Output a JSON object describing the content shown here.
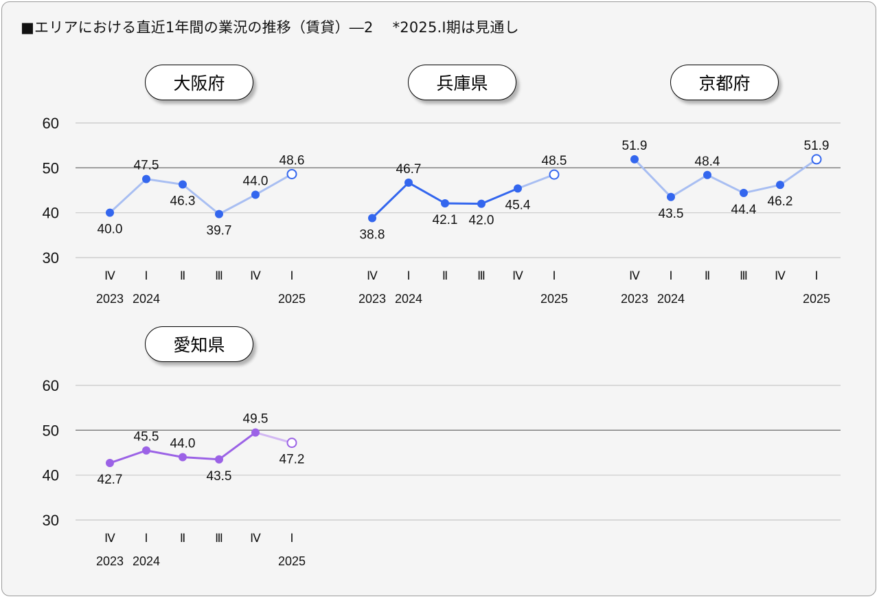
{
  "title": "■エリアにおける直近1年間の業況の推移（賃貸）―2",
  "title_note": "*2025.Ⅰ期は見通し",
  "colors": {
    "blue": "#3366ee",
    "blue_light": "#a8bef2",
    "purple": "#9b62e6",
    "purple_light": "#d2b8f3",
    "grid": "#c8c8c8",
    "grid_50": "#777777"
  },
  "chart_data": [
    {
      "type": "line",
      "name": "大阪府",
      "categories": [
        "Ⅳ",
        "Ⅰ",
        "Ⅱ",
        "Ⅲ",
        "Ⅳ",
        "Ⅰ"
      ],
      "years": [
        "2023",
        "2024",
        "",
        "",
        "",
        "2025"
      ],
      "values": [
        40.0,
        47.5,
        46.3,
        39.7,
        44.0,
        48.6
      ],
      "labels": [
        "40.0",
        "47.5",
        "46.3",
        "39.7",
        "44.0",
        "48.6"
      ],
      "label_pos": [
        "below",
        "above",
        "below",
        "below",
        "above",
        "above"
      ],
      "yticks": [
        "60",
        "50",
        "40",
        "30"
      ],
      "ylim": [
        30,
        60
      ],
      "forecast_last": true,
      "segment_tone": [
        "light",
        "light",
        "light",
        "light",
        "light"
      ],
      "theme": "blue"
    },
    {
      "type": "line",
      "name": "兵庫県",
      "categories": [
        "Ⅳ",
        "Ⅰ",
        "Ⅱ",
        "Ⅲ",
        "Ⅳ",
        "Ⅰ"
      ],
      "years": [
        "2023",
        "2024",
        "",
        "",
        "",
        "2025"
      ],
      "values": [
        38.8,
        46.7,
        42.1,
        42.0,
        45.4,
        48.5
      ],
      "labels": [
        "38.8",
        "46.7",
        "42.1",
        "42.0",
        "45.4",
        "48.5"
      ],
      "label_pos": [
        "below",
        "above",
        "below",
        "below",
        "below",
        "above"
      ],
      "ylim": [
        30,
        60
      ],
      "forecast_last": true,
      "segment_tone": [
        "dark",
        "dark",
        "dark",
        "dark",
        "light"
      ],
      "theme": "blue"
    },
    {
      "type": "line",
      "name": "京都府",
      "categories": [
        "Ⅳ",
        "Ⅰ",
        "Ⅱ",
        "Ⅲ",
        "Ⅳ",
        "Ⅰ"
      ],
      "years": [
        "2023",
        "2024",
        "",
        "",
        "",
        "2025"
      ],
      "values": [
        51.9,
        43.5,
        48.4,
        44.4,
        46.2,
        51.9
      ],
      "labels": [
        "51.9",
        "43.5",
        "48.4",
        "44.4",
        "46.2",
        "51.9"
      ],
      "label_pos": [
        "above",
        "below",
        "above",
        "below",
        "below",
        "above"
      ],
      "ylim": [
        30,
        60
      ],
      "forecast_last": true,
      "segment_tone": [
        "light",
        "light",
        "light",
        "light",
        "light"
      ],
      "theme": "blue"
    },
    {
      "type": "line",
      "name": "愛知県",
      "categories": [
        "Ⅳ",
        "Ⅰ",
        "Ⅱ",
        "Ⅲ",
        "Ⅳ",
        "Ⅰ"
      ],
      "years": [
        "2023",
        "2024",
        "",
        "",
        "",
        "2025"
      ],
      "values": [
        42.7,
        45.5,
        44.0,
        43.5,
        49.5,
        47.2
      ],
      "labels": [
        "42.7",
        "45.5",
        "44.0",
        "43.5",
        "49.5",
        "47.2"
      ],
      "label_pos": [
        "below",
        "above",
        "above",
        "below",
        "above",
        "below"
      ],
      "yticks": [
        "60",
        "50",
        "40",
        "30"
      ],
      "ylim": [
        30,
        60
      ],
      "forecast_last": true,
      "segment_tone": [
        "dark",
        "dark",
        "dark",
        "dark",
        "light"
      ],
      "theme": "purple"
    }
  ]
}
